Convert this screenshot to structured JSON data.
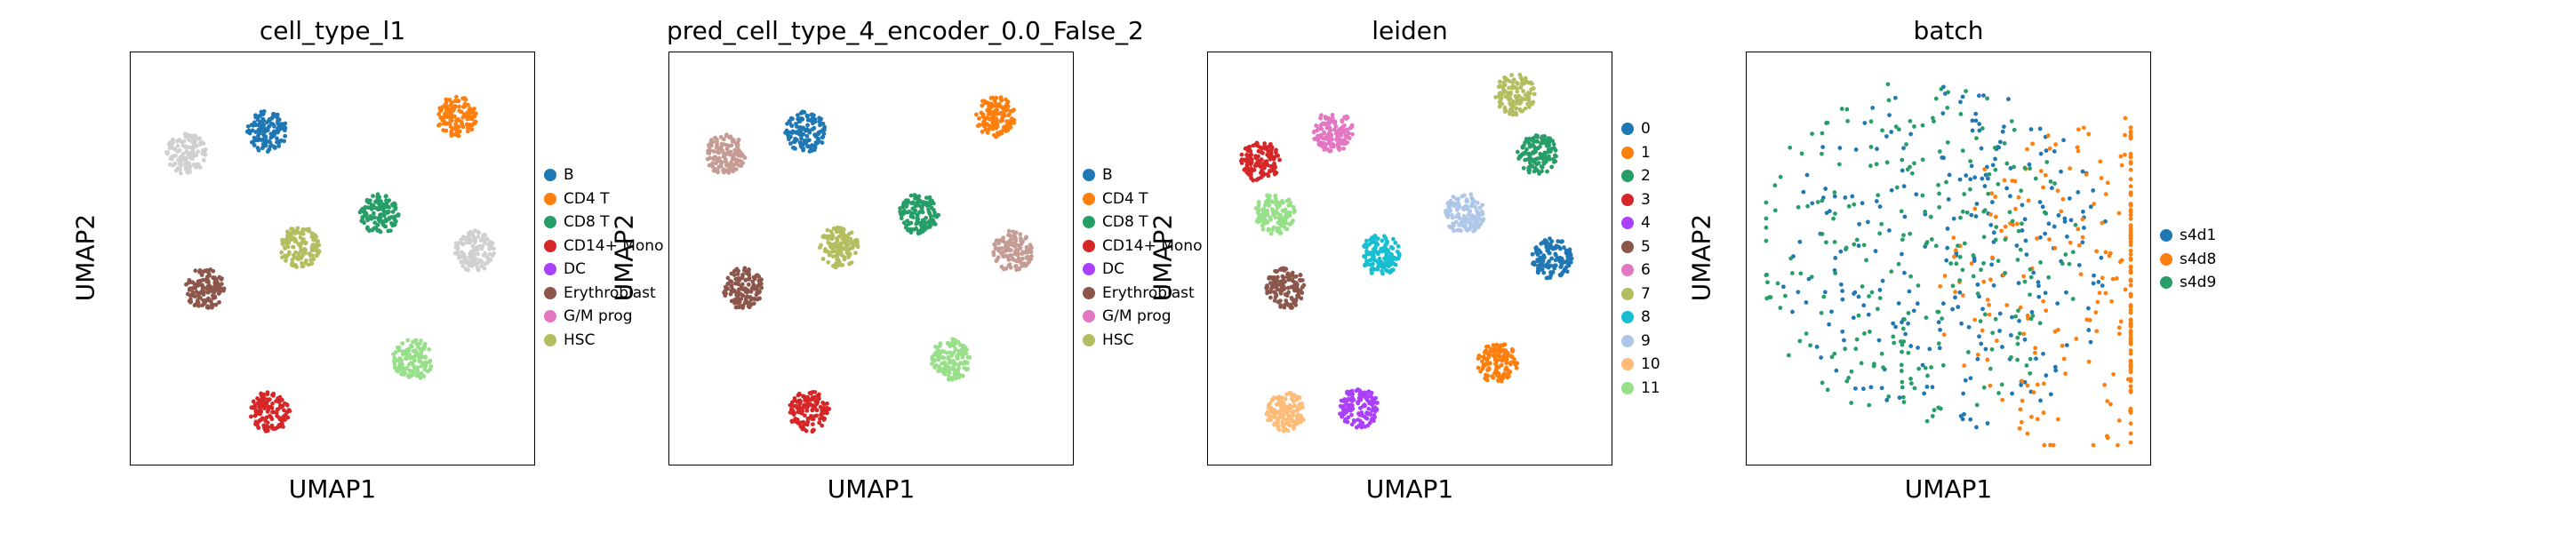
{
  "chart_data": [
    {
      "type": "scatter",
      "title": "cell_type_l1",
      "xlabel": "UMAP1",
      "ylabel": "UMAP2",
      "legend": [
        "B",
        "CD4 T",
        "CD8 T",
        "CD14+ Mono",
        "DC",
        "Erythroblast",
        "G/M prog",
        "HSC"
      ],
      "legend_colors": [
        "#1f77b4",
        "#ff7f0e",
        "#279e68",
        "#d62728",
        "#aa40fc",
        "#8c564b",
        "#e377c2",
        "#b5bd61"
      ],
      "legend_placement": "right",
      "grid": false,
      "clusters": [
        {
          "label": "B",
          "color": "#1f77b4",
          "x": 3.2,
          "y": 8.4
        },
        {
          "label": "",
          "color": "#d0d0d0",
          "x": 1.0,
          "y": 7.8
        },
        {
          "label": "CD4 T",
          "color": "#ff7f0e",
          "x": 8.4,
          "y": 8.8
        },
        {
          "label": "CD8 T",
          "color": "#279e68",
          "x": 6.3,
          "y": 6.2
        },
        {
          "label": "",
          "color": "#d0d0d0",
          "x": 8.9,
          "y": 5.2
        },
        {
          "label": "Erythroblast",
          "color": "#8c564b",
          "x": 1.5,
          "y": 4.2
        },
        {
          "label": "HSC",
          "color": "#b5bd61",
          "x": 4.1,
          "y": 5.3
        },
        {
          "label": "CD14+ Mono",
          "color": "#d62728",
          "x": 3.3,
          "y": 0.9
        },
        {
          "label": "",
          "color": "#98df8a",
          "x": 7.2,
          "y": 2.3
        }
      ]
    },
    {
      "type": "scatter",
      "title": "pred_cell_type_4_encoder_0.0_False_2",
      "xlabel": "UMAP1",
      "ylabel": "UMAP2",
      "legend": [
        "B",
        "CD4 T",
        "CD8 T",
        "CD14+ Mono",
        "DC",
        "Erythroblast",
        "G/M prog",
        "HSC"
      ],
      "legend_colors": [
        "#1f77b4",
        "#ff7f0e",
        "#279e68",
        "#d62728",
        "#aa40fc",
        "#8c564b",
        "#e377c2",
        "#b5bd61"
      ],
      "legend_placement": "right",
      "grid": false,
      "clusters": [
        {
          "label": "B",
          "color": "#1f77b4",
          "x": 3.2,
          "y": 8.4
        },
        {
          "label": "",
          "color": "#c49c94",
          "x": 1.0,
          "y": 7.8
        },
        {
          "label": "CD4 T",
          "color": "#ff7f0e",
          "x": 8.4,
          "y": 8.8
        },
        {
          "label": "CD8 T",
          "color": "#279e68",
          "x": 6.3,
          "y": 6.2
        },
        {
          "label": "",
          "color": "#c49c94",
          "x": 8.9,
          "y": 5.2
        },
        {
          "label": "Erythroblast",
          "color": "#8c564b",
          "x": 1.5,
          "y": 4.2
        },
        {
          "label": "HSC",
          "color": "#b5bd61",
          "x": 4.1,
          "y": 5.3
        },
        {
          "label": "CD14+ Mono",
          "color": "#d62728",
          "x": 3.3,
          "y": 0.9
        },
        {
          "label": "",
          "color": "#98df8a",
          "x": 7.2,
          "y": 2.3
        }
      ]
    },
    {
      "type": "scatter",
      "title": "leiden",
      "xlabel": "UMAP1",
      "ylabel": "UMAP2",
      "legend": [
        "0",
        "1",
        "2",
        "3",
        "4",
        "5",
        "6",
        "7",
        "8",
        "9",
        "10",
        "11"
      ],
      "legend_colors": [
        "#1f77b4",
        "#ff7f0e",
        "#279e68",
        "#d62728",
        "#aa40fc",
        "#8c564b",
        "#e377c2",
        "#b5bd61",
        "#17becf",
        "#aec7e8",
        "#ffbb78",
        "#98df8a"
      ],
      "legend_placement": "right",
      "grid": false,
      "clusters": [
        {
          "label": "0",
          "color": "#1f77b4",
          "x": 8.9,
          "y": 5.0
        },
        {
          "label": "1",
          "color": "#ff7f0e",
          "x": 7.4,
          "y": 2.2
        },
        {
          "label": "2",
          "color": "#279e68",
          "x": 8.5,
          "y": 7.8
        },
        {
          "label": "3",
          "color": "#d62728",
          "x": 0.9,
          "y": 7.6
        },
        {
          "label": "4",
          "color": "#aa40fc",
          "x": 3.6,
          "y": 1.0
        },
        {
          "label": "5",
          "color": "#8c564b",
          "x": 1.6,
          "y": 4.2
        },
        {
          "label": "6",
          "color": "#e377c2",
          "x": 2.9,
          "y": 8.4
        },
        {
          "label": "7",
          "color": "#b5bd61",
          "x": 7.9,
          "y": 9.4
        },
        {
          "label": "8",
          "color": "#17becf",
          "x": 4.2,
          "y": 5.1
        },
        {
          "label": "9",
          "color": "#aec7e8",
          "x": 6.5,
          "y": 6.2
        },
        {
          "label": "10",
          "color": "#ffbb78",
          "x": 1.6,
          "y": 0.9
        },
        {
          "label": "11",
          "color": "#98df8a",
          "x": 1.3,
          "y": 6.2
        }
      ]
    },
    {
      "type": "scatter",
      "title": "batch",
      "xlabel": "UMAP1",
      "ylabel": "UMAP2",
      "legend": [
        "s4d1",
        "s4d8",
        "s4d9"
      ],
      "legend_colors": [
        "#1f77b4",
        "#ff7f0e",
        "#279e68"
      ],
      "legend_placement": "right",
      "grid": false,
      "clusters": [
        {
          "label": "s4d1",
          "color": "#1f77b4",
          "x": 5.0,
          "y": 5.0
        },
        {
          "label": "s4d8",
          "color": "#ff7f0e",
          "x": 9.3,
          "y": 4.2
        },
        {
          "label": "s4d9",
          "color": "#279e68",
          "x": 4.1,
          "y": 5.2
        }
      ]
    }
  ]
}
